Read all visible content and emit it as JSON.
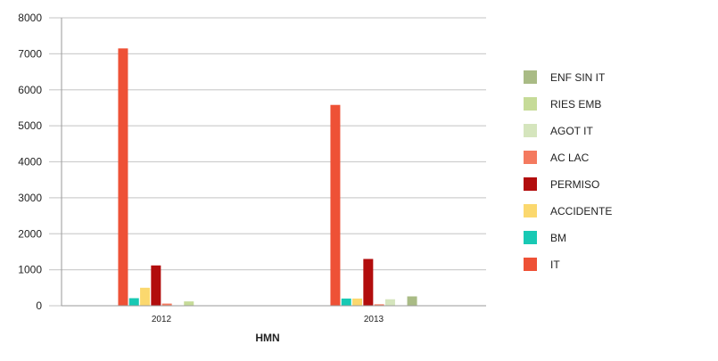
{
  "chart_data": {
    "type": "bar",
    "title": "",
    "xlabel": "HMN",
    "ylabel": "",
    "categories": [
      "2012",
      "2013"
    ],
    "ylim": [
      0,
      8000
    ],
    "yticks": [
      0,
      1000,
      2000,
      3000,
      4000,
      5000,
      6000,
      7000,
      8000
    ],
    "grid": true,
    "legend_position": "right",
    "series": [
      {
        "name": "IT",
        "color": "#ee5136",
        "values": [
          7150,
          5580
        ]
      },
      {
        "name": "BM",
        "color": "#18c9b4",
        "values": [
          210,
          200
        ]
      },
      {
        "name": "ACCIDENTE",
        "color": "#fbd86e",
        "values": [
          500,
          200
        ]
      },
      {
        "name": "PERMISO",
        "color": "#b20d0d",
        "values": [
          1120,
          1300
        ]
      },
      {
        "name": "AC LAC",
        "color": "#f47a5f",
        "values": [
          60,
          40
        ]
      },
      {
        "name": "AGOT IT",
        "color": "#d5e5bd",
        "values": [
          0,
          180
        ]
      },
      {
        "name": "RIES EMB",
        "color": "#c6db98",
        "values": [
          120,
          0
        ]
      },
      {
        "name": "ENF SIN IT",
        "color": "#a9bb85",
        "values": [
          0,
          260
        ]
      }
    ]
  }
}
